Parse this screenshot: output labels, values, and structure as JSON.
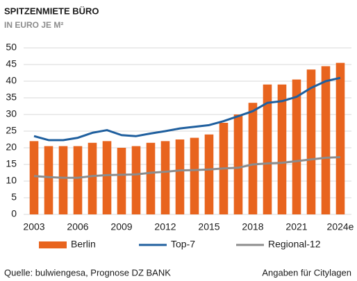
{
  "chart_data": {
    "type": "bar",
    "title": "SPITZENMIETE BÜRO",
    "subtitle": "IN EURO JE M²",
    "categories": [
      "2003",
      null,
      null,
      "2006",
      null,
      null,
      "2009",
      null,
      null,
      "2012",
      null,
      null,
      "2015",
      null,
      null,
      "2018",
      null,
      null,
      "2021",
      null,
      null,
      "2024e"
    ],
    "series": [
      {
        "name": "Berlin",
        "type": "bar",
        "color": "#e8641e",
        "values": [
          22,
          20.5,
          20.5,
          20.5,
          21.5,
          22,
          20,
          20.5,
          21.5,
          22,
          22.5,
          23,
          24,
          27.5,
          30,
          33.5,
          39,
          39,
          40.5,
          43.5,
          44.5,
          45.5
        ]
      },
      {
        "name": "Top-7",
        "type": "line",
        "color": "#1f5f9e",
        "values": [
          23.5,
          22.3,
          22.3,
          23,
          24.5,
          25.3,
          23.8,
          23.5,
          24.3,
          25,
          25.8,
          26.3,
          26.8,
          28,
          29.5,
          31,
          33.5,
          34,
          35.3,
          38,
          40,
          41
        ]
      },
      {
        "name": "Regional-12",
        "type": "line",
        "color": "#8c8c8c",
        "values": [
          11.5,
          11.2,
          11,
          11,
          11.5,
          11.8,
          11.9,
          12,
          12.5,
          12.8,
          13.2,
          13.3,
          13.5,
          13.8,
          14,
          15,
          15.3,
          15.5,
          16,
          16.5,
          17,
          17.2
        ]
      }
    ],
    "ylim": [
      0,
      50
    ],
    "yticks": [
      0,
      5,
      10,
      15,
      20,
      25,
      30,
      35,
      40,
      45,
      50
    ],
    "grid": true,
    "legend": "bottom",
    "source": "Quelle: bulwiengesa, Prognose DZ BANK",
    "note": "Angaben für Citylagen"
  }
}
